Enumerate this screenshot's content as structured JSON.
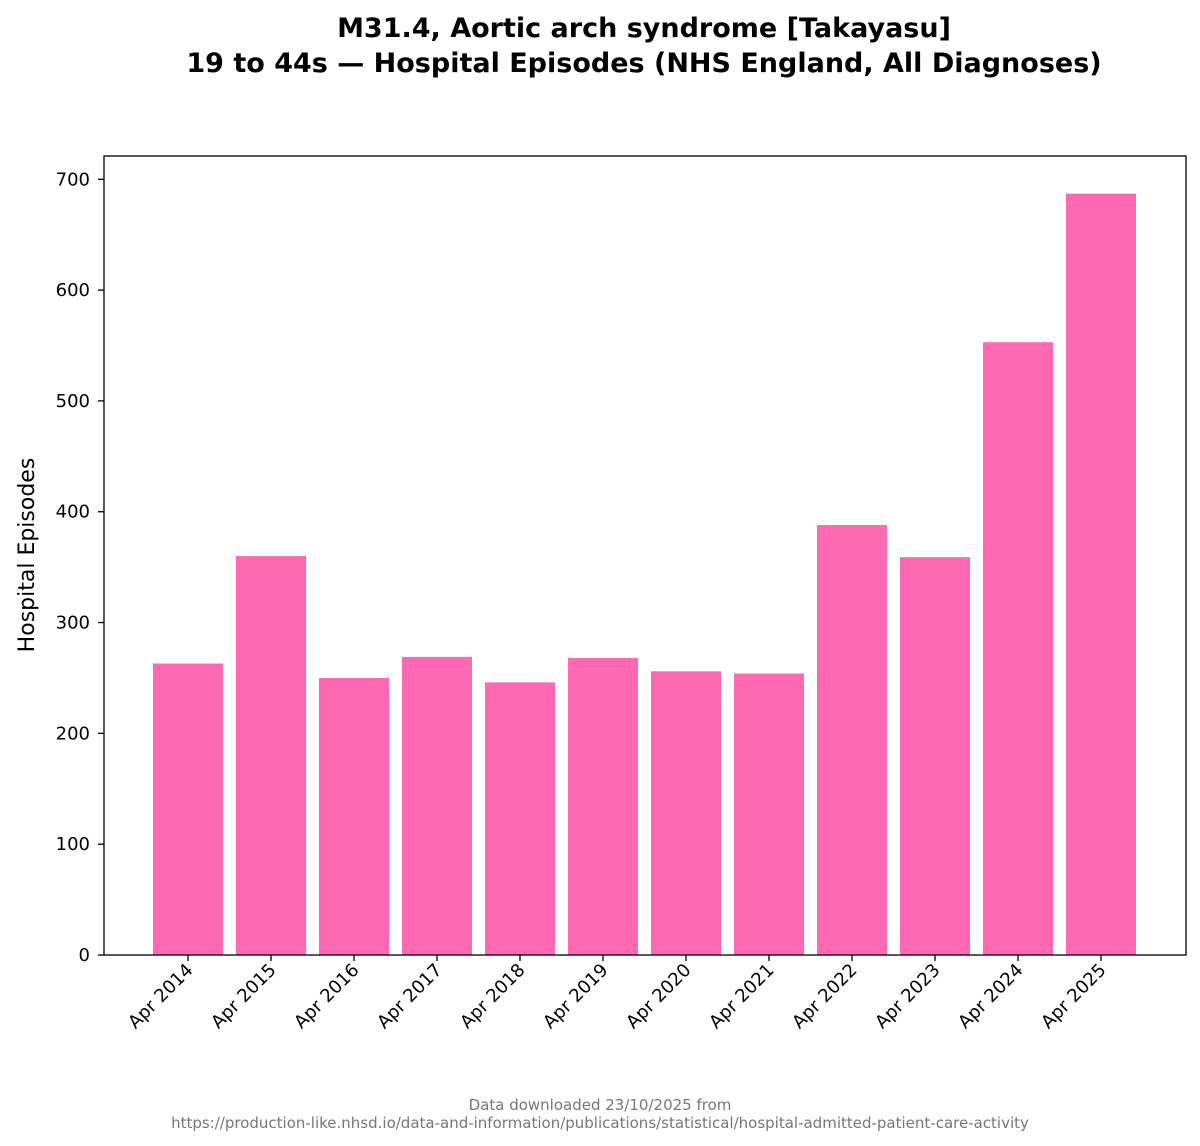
{
  "chart_data": {
    "type": "bar",
    "title_line1": "M31.4, Aortic arch syndrome [Takayasu]",
    "title_line2": "19 to 44s — Hospital Episodes (NHS England, All Diagnoses)",
    "xlabel": "",
    "ylabel": "Hospital Episodes",
    "categories": [
      "Apr 2014",
      "Apr 2015",
      "Apr 2016",
      "Apr 2017",
      "Apr 2018",
      "Apr 2019",
      "Apr 2020",
      "Apr 2021",
      "Apr 2022",
      "Apr 2023",
      "Apr 2024",
      "Apr 2025"
    ],
    "values": [
      263,
      360,
      250,
      269,
      246,
      268,
      256,
      254,
      388,
      359,
      553,
      687
    ],
    "ylim": [
      0,
      721
    ],
    "yticks": [
      "0",
      "100",
      "200",
      "300",
      "400",
      "500",
      "600",
      "700"
    ],
    "grid": false,
    "bar_color": "#ff69b4"
  },
  "footer": {
    "line1": "Data downloaded 23/10/2025 from",
    "line2": "https://production-like.nhsd.io/data-and-information/publications/statistical/hospital-admitted-patient-care-activity"
  }
}
